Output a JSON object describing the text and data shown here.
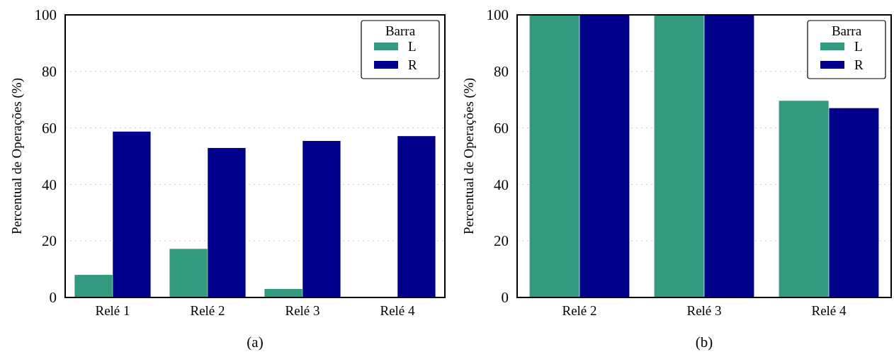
{
  "chart_data": [
    {
      "type": "bar",
      "categories": [
        "Relé 1",
        "Relé 2",
        "Relé 3",
        "Relé 4"
      ],
      "ylabel": "Percentual de Operações (%)",
      "legend_title": "Barra",
      "legend": "top right",
      "grid": "y",
      "ylim": [
        0,
        100
      ],
      "yticks": [
        0,
        20,
        40,
        60,
        80,
        100
      ],
      "annotations": [
        "(a)"
      ],
      "series": [
        {
          "name": "L",
          "color": "#339a80",
          "values": [
            8.0,
            17.2,
            3.0,
            0
          ]
        },
        {
          "name": "R",
          "color": "#00008b",
          "values": [
            58.7,
            52.9,
            55.4,
            57.1
          ]
        }
      ]
    },
    {
      "type": "bar",
      "categories": [
        "Relé 2",
        "Relé 3",
        "Relé 4"
      ],
      "ylabel": "Percentual de Operações (%)",
      "legend_title": "Barra",
      "legend": "top right",
      "grid": "y",
      "ylim": [
        0,
        100
      ],
      "yticks": [
        0,
        20,
        40,
        60,
        80,
        100
      ],
      "annotations": [
        "(b)"
      ],
      "series": [
        {
          "name": "L",
          "color": "#339a80",
          "values": [
            100,
            100,
            69.6
          ]
        },
        {
          "name": "R",
          "color": "#00008b",
          "values": [
            100,
            100,
            67.0
          ]
        }
      ]
    }
  ]
}
